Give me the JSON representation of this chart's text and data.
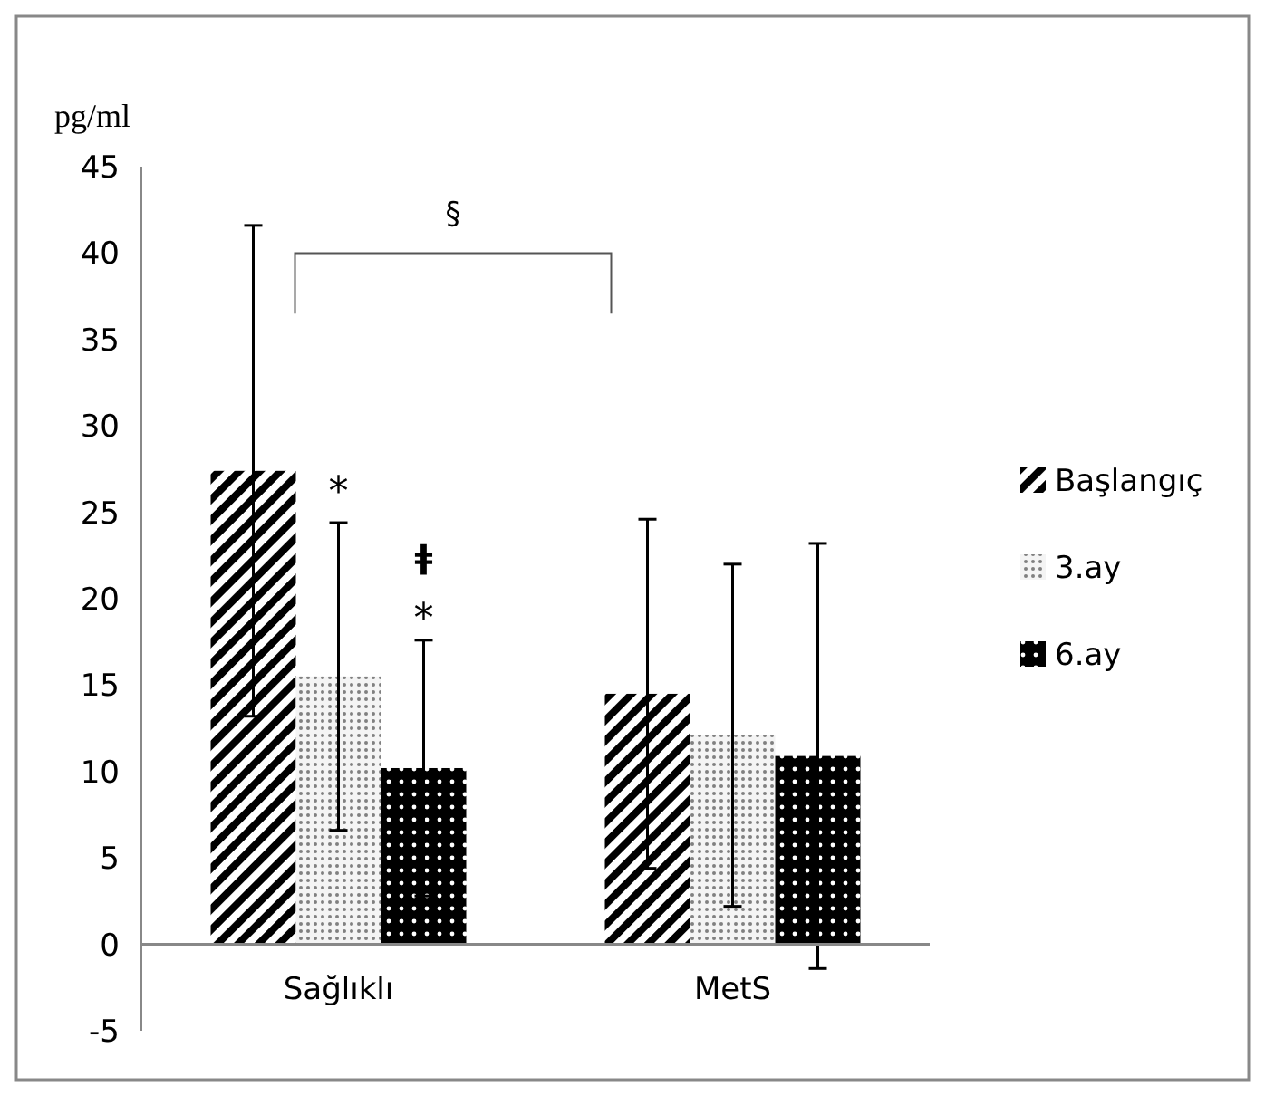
{
  "chart_data": {
    "type": "bar",
    "ylabel": "pg/ml",
    "categories": [
      "Sağlıklı",
      "MetS"
    ],
    "series": [
      {
        "name": "Başlangıç",
        "color": "#000000",
        "values": [
          27.4,
          14.5
        ],
        "errors": [
          14.2,
          10.1
        ]
      },
      {
        "name": "3.ay",
        "color": "#808080",
        "values": [
          15.5,
          12.1
        ],
        "errors": [
          8.9,
          9.9
        ]
      },
      {
        "name": "6.ay",
        "color": "#000000",
        "values": [
          10.2,
          10.9
        ],
        "errors": [
          7.4,
          12.3
        ]
      }
    ],
    "ylim": [
      -5,
      45
    ],
    "yticks": [
      -5,
      0,
      5,
      10,
      15,
      20,
      25,
      30,
      35,
      40,
      45
    ],
    "grid": false,
    "legend": "right",
    "annotations": [
      "§",
      "*",
      "ǂ",
      "*"
    ]
  }
}
